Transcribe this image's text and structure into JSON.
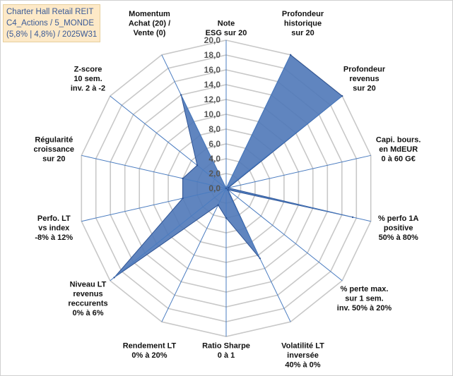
{
  "title_box": {
    "lines": [
      "Charter Hall Retail REIT",
      "C4_Actions / 5_MONDE",
      "(5,8% | 4,8%) / 2025W31"
    ]
  },
  "colors": {
    "fill": "#4f78b8",
    "stroke": "#2e5394",
    "grid": "#c8c8c8",
    "axis": "#4a7cc0",
    "title_bg": "#fde9c7",
    "title_text": "#3a5a96"
  },
  "chart_data": {
    "type": "radar",
    "title": "",
    "axes": [
      [
        "Note",
        "ESG sur 20"
      ],
      [
        "Profondeur",
        "historique",
        "sur 20"
      ],
      [
        "Profondeur",
        "revenus",
        "sur 20"
      ],
      [
        "Capi. bours.",
        "en MdEUR",
        "0 à 60 G€"
      ],
      [
        "% perfo 1A",
        "positive",
        "50% à 80%"
      ],
      [
        "% perte max.",
        "sur 1 sem.",
        "inv. 50% à 20%"
      ],
      [
        "Volatilité LT",
        "inversée",
        "40% à 0%"
      ],
      [
        "Ratio Sharpe",
        "0 à 1"
      ],
      [
        "Rendement LT",
        "0% à 20%"
      ],
      [
        "Niveau LT",
        "revenus",
        "reccurents",
        "0% à 6%"
      ],
      [
        "Perfo. LT",
        "vs index",
        "-8% à 12%"
      ],
      [
        "Régularité",
        "croissance",
        "sur 20"
      ],
      [
        "Z-score",
        "10 sem.",
        "inv. 2 à -2"
      ],
      [
        "Momentum",
        "Achat (20) /",
        "Vente (0)"
      ]
    ],
    "values": [
      0.0,
      20.0,
      20.0,
      0.3,
      17.5,
      0.3,
      10.5,
      4.0,
      2.5,
      19.3,
      6.0,
      6.0,
      5.0,
      14.0
    ],
    "rmin": 0,
    "rmax": 20,
    "ticks": [
      "0,0",
      "2,0",
      "4,0",
      "6,0",
      "8,0",
      "10,0",
      "12,0",
      "14,0",
      "16,0",
      "18,0",
      "20,0"
    ],
    "legend": "none"
  }
}
